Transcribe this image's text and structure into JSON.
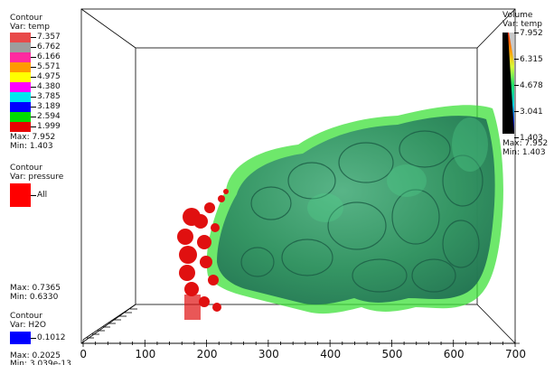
{
  "temp_legend": {
    "title": "Contour",
    "var": "Var: temp",
    "levels": [
      {
        "label": "7.357",
        "color": "#e84a4a"
      },
      {
        "label": "6.762",
        "color": "#9d9d9d"
      },
      {
        "label": "6.166",
        "color": "#ff2aa0"
      },
      {
        "label": "5.571",
        "color": "#ff9a00"
      },
      {
        "label": "4.975",
        "color": "#ffff00"
      },
      {
        "label": "4.380",
        "color": "#ff00ff"
      },
      {
        "label": "3.785",
        "color": "#00e8f0"
      },
      {
        "label": "3.189",
        "color": "#0000ff"
      },
      {
        "label": "2.594",
        "color": "#00dd00"
      },
      {
        "label": "1.999",
        "color": "#e80000"
      }
    ],
    "max": "Max:  7.952",
    "min": "Min:  1.403"
  },
  "pressure_legend": {
    "title": "Contour",
    "var": "Var: pressure",
    "label": "All",
    "color": "#ff0000",
    "max": "Max:  0.7365",
    "min": "Min:  0.6330"
  },
  "h2o_legend": {
    "title": "Contour",
    "var": "Var: H2O",
    "label": "0.1012",
    "color": "#0000ff",
    "max": "Max:  0.2025",
    "min": "Min:  3.039e-13"
  },
  "volume_legend": {
    "title": "Volume",
    "var": "Var: temp",
    "ticks": [
      "7.952",
      "6.315",
      "4.678",
      "3.041",
      "1.403"
    ],
    "max": "Max:  7.952",
    "min": "Min:  1.403"
  },
  "x_axis": {
    "ticks": [
      "0",
      "100",
      "200",
      "300",
      "400",
      "500",
      "600",
      "700"
    ]
  },
  "colors": {
    "volume_green": "#2e8f5c",
    "bright_green": "#3ee03a",
    "red": "#e01010",
    "bounding_box": "#000000"
  }
}
